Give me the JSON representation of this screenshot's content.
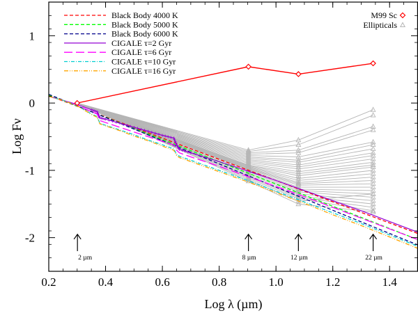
{
  "chart_data": {
    "type": "line",
    "xlabel": "Log λ (µm)",
    "ylabel": "Log Fν",
    "xlim": [
      0.2,
      1.5
    ],
    "ylim": [
      -2.5,
      1.5
    ],
    "xticks": [
      0.2,
      0.4,
      0.6,
      0.8,
      1.0,
      1.2,
      1.4
    ],
    "xtick_labels": [
      "0.2",
      "0.4",
      "0.6",
      "0.8",
      "1.0",
      "1.2",
      "1.4"
    ],
    "yticks": [
      1,
      0,
      -1,
      -2
    ],
    "ytick_labels": [
      "1",
      "0",
      "-1",
      "-2"
    ],
    "legend_left": [
      {
        "id": "bb4000",
        "label": "Black Body 4000 K"
      },
      {
        "id": "bb5000",
        "label": "Black Body 5000 K"
      },
      {
        "id": "bb6000",
        "label": "Black Body 6000 K"
      },
      {
        "id": "cig2",
        "label": "CIGALE τ=2 Gyr"
      },
      {
        "id": "cig6",
        "label": "CIGALE τ=6 Gyr"
      },
      {
        "id": "cig10",
        "label": "CIGALE τ=10 Gyr"
      },
      {
        "id": "cig16",
        "label": "CIGALE τ=16 Gyr"
      }
    ],
    "legend_right": [
      {
        "id": "m99",
        "label": "M99 Sc"
      },
      {
        "id": "ell",
        "label": "Ellipticals"
      }
    ],
    "series": [
      {
        "id": "bb4000",
        "name": "Black Body 4000 K",
        "color": "#ff0000",
        "dash": "5,3",
        "width": 1.3,
        "x": [
          0.2,
          1.5
        ],
        "y": [
          0.11,
          -1.94
        ]
      },
      {
        "id": "bb5000",
        "name": "Black Body 5000 K",
        "color": "#00ff00",
        "dash": "5,3",
        "width": 1.3,
        "x": [
          0.2,
          1.5
        ],
        "y": [
          0.12,
          -2.03
        ]
      },
      {
        "id": "bb6000",
        "name": "Black Body 6000 K",
        "color": "#00008b",
        "dash": "5,3",
        "width": 1.3,
        "x": [
          0.2,
          1.5
        ],
        "y": [
          0.13,
          -2.11
        ]
      },
      {
        "id": "cig2",
        "name": "CIGALE τ=2 Gyr",
        "color": "#9400d3",
        "dash": "",
        "width": 1.2,
        "x": [
          0.2,
          0.25,
          0.3,
          0.35,
          0.37,
          0.38,
          0.4,
          0.45,
          0.5,
          0.55,
          0.6,
          0.64,
          0.65,
          0.66,
          0.7,
          0.8,
          0.9,
          1.0,
          1.1,
          1.2,
          1.3,
          1.4,
          1.5
        ],
        "y": [
          0.1,
          0.04,
          -0.02,
          -0.1,
          -0.13,
          -0.22,
          -0.24,
          -0.3,
          -0.36,
          -0.42,
          -0.48,
          -0.52,
          -0.62,
          -0.69,
          -0.74,
          -0.87,
          -1.01,
          -1.15,
          -1.3,
          -1.45,
          -1.6,
          -1.76,
          -1.92
        ]
      },
      {
        "id": "cig6",
        "name": "CIGALE τ=6 Gyr",
        "color": "#ff00ff",
        "dash": "12,5",
        "width": 1.3,
        "x": [
          0.2,
          0.25,
          0.3,
          0.35,
          0.37,
          0.38,
          0.4,
          0.45,
          0.5,
          0.55,
          0.6,
          0.64,
          0.65,
          0.66,
          0.7,
          0.8,
          0.9,
          1.0,
          1.1,
          1.2,
          1.3,
          1.4,
          1.5
        ],
        "y": [
          0.1,
          0.04,
          -0.03,
          -0.13,
          -0.16,
          -0.26,
          -0.29,
          -0.36,
          -0.43,
          -0.5,
          -0.57,
          -0.62,
          -0.7,
          -0.74,
          -0.8,
          -0.94,
          -1.09,
          -1.24,
          -1.39,
          -1.55,
          -1.71,
          -1.87,
          -2.03
        ]
      },
      {
        "id": "cig10",
        "name": "CIGALE τ=10 Gyr",
        "color": "#00ced1",
        "dash": "5,2,1,2",
        "width": 1.3,
        "x": [
          0.2,
          0.25,
          0.3,
          0.35,
          0.37,
          0.38,
          0.4,
          0.45,
          0.5,
          0.55,
          0.6,
          0.64,
          0.65,
          0.66,
          0.7,
          0.8,
          0.9,
          1.0,
          1.1,
          1.2,
          1.3,
          1.4,
          1.5
        ],
        "y": [
          0.1,
          0.04,
          -0.04,
          -0.16,
          -0.2,
          -0.3,
          -0.33,
          -0.4,
          -0.47,
          -0.55,
          -0.62,
          -0.68,
          -0.76,
          -0.79,
          -0.85,
          -1.0,
          -1.15,
          -1.31,
          -1.47,
          -1.63,
          -1.79,
          -1.96,
          -2.13
        ]
      },
      {
        "id": "cig16",
        "name": "CIGALE τ=16 Gyr",
        "color": "#ffa500",
        "dash": "6,2,1,2,1,2",
        "width": 1.3,
        "x": [
          0.2,
          0.25,
          0.3,
          0.35,
          0.37,
          0.38,
          0.4,
          0.45,
          0.5,
          0.55,
          0.6,
          0.64,
          0.65,
          0.66,
          0.7,
          0.8,
          0.9,
          1.0,
          1.1,
          1.2,
          1.3,
          1.4,
          1.5
        ],
        "y": [
          0.1,
          0.04,
          -0.04,
          -0.17,
          -0.21,
          -0.31,
          -0.34,
          -0.41,
          -0.49,
          -0.56,
          -0.64,
          -0.7,
          -0.78,
          -0.81,
          -0.87,
          -1.02,
          -1.17,
          -1.33,
          -1.49,
          -1.66,
          -1.82,
          -1.99,
          -2.16
        ]
      }
    ],
    "m99": {
      "name": "M99 Sc",
      "color": "#ff0000",
      "x": [
        0.3,
        0.903,
        1.079,
        1.342
      ],
      "y": [
        0.0,
        0.54,
        0.43,
        0.59
      ]
    },
    "ellipticals": {
      "name": "Ellipticals",
      "color": "#b5b5b5",
      "x": [
        0.3,
        0.903,
        1.079,
        1.342
      ],
      "curves": [
        [
          0.0,
          -0.7,
          -0.55,
          -0.1
        ],
        [
          0.0,
          -0.72,
          -0.62,
          -0.18
        ],
        [
          0.0,
          -0.74,
          -0.7,
          -0.35
        ],
        [
          0.0,
          -0.76,
          -0.74,
          -0.4
        ],
        [
          0.0,
          -0.78,
          -0.8,
          -0.58
        ],
        [
          0.0,
          -0.8,
          -0.85,
          -0.62
        ],
        [
          0.0,
          -0.82,
          -0.88,
          -0.68
        ],
        [
          0.0,
          -0.84,
          -0.92,
          -0.74
        ],
        [
          0.0,
          -0.86,
          -0.95,
          -0.78
        ],
        [
          0.0,
          -0.88,
          -0.98,
          -0.83
        ],
        [
          0.0,
          -0.9,
          -1.02,
          -0.88
        ],
        [
          0.0,
          -0.92,
          -1.05,
          -0.92
        ],
        [
          0.0,
          -0.93,
          -1.08,
          -0.95
        ],
        [
          0.0,
          -0.94,
          -1.12,
          -1.0
        ],
        [
          0.0,
          -0.95,
          -1.15,
          -1.05
        ],
        [
          0.0,
          -0.96,
          -1.18,
          -1.1
        ],
        [
          0.0,
          -0.97,
          -1.2,
          -1.15
        ],
        [
          0.0,
          -0.98,
          -1.22,
          -1.2
        ],
        [
          0.0,
          -0.99,
          -1.25,
          -1.25
        ],
        [
          0.0,
          -1.0,
          -1.28,
          -1.3
        ],
        [
          0.0,
          -1.02,
          -1.3,
          -1.35
        ],
        [
          0.0,
          -1.04,
          -1.32,
          -1.4
        ],
        [
          0.0,
          -1.06,
          -1.35,
          -1.45
        ],
        [
          0.0,
          -1.08,
          -1.38,
          -1.5
        ],
        [
          0.0,
          -1.1,
          -1.4,
          -1.55
        ],
        [
          0.0,
          -1.12,
          -1.42,
          -1.6
        ],
        [
          0.0,
          -1.14,
          -1.46,
          -1.35
        ],
        [
          0.0,
          -1.16,
          -1.5,
          -1.62
        ]
      ]
    },
    "annotations": [
      {
        "text": "2 µm",
        "x": 0.301
      },
      {
        "text": "8 µm",
        "x": 0.903
      },
      {
        "text": "12 µm",
        "x": 1.079
      },
      {
        "text": "22 µm",
        "x": 1.342
      }
    ],
    "arrow_y_range": [
      -2.2,
      -1.95
    ]
  }
}
